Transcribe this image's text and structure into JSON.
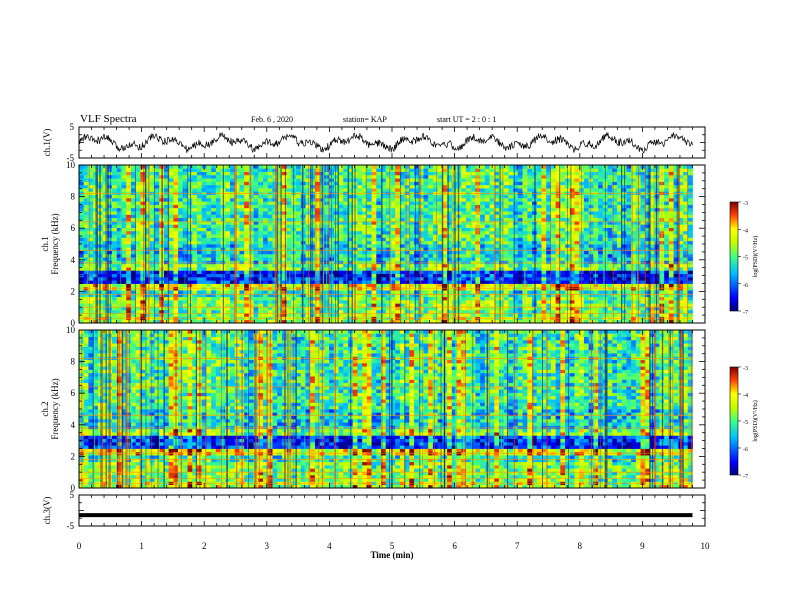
{
  "header": {
    "title": "VLF Spectra",
    "date": "Feb. 6 , 2020",
    "station": "station= KAP",
    "start": "start UT =  2 : 0 : 1"
  },
  "chart_data": [
    {
      "type": "line",
      "panel": "ch1-waveform",
      "ylabel": "ch.1(V)",
      "ylim": [
        -5,
        5
      ],
      "yticks": [
        -5,
        5
      ],
      "xlim": [
        0,
        10
      ],
      "description_values": "noisy waveform oscillating roughly between -3 and 3 V, spanning 0 to ~9.8 min"
    },
    {
      "type": "heatmap",
      "panel": "ch1-spectrogram",
      "ylabel": "ch.1\nFrequency (kHz)",
      "ylabel_lines": [
        "ch.1",
        "Frequency (kHz)"
      ],
      "ylim": [
        0,
        10
      ],
      "yticks": [
        0,
        2,
        4,
        6,
        8,
        10
      ],
      "xlim": [
        0,
        10
      ],
      "data_xmax": 9.8,
      "colorbar": {
        "label": "log(PSD)(V²/Hz)",
        "range": [
          -7,
          -3
        ],
        "ticks": [
          -7,
          -6,
          -5,
          -4,
          -3
        ]
      }
    },
    {
      "type": "heatmap",
      "panel": "ch2-spectrogram",
      "ylabel": "ch.2\nFrequency (kHz)",
      "ylabel_lines": [
        "ch.2",
        "Frequency (kHz)"
      ],
      "ylim": [
        0,
        10
      ],
      "yticks": [
        0,
        2,
        4,
        6,
        8,
        10
      ],
      "xlim": [
        0,
        10
      ],
      "data_xmax": 9.8,
      "colorbar": {
        "label": "log(PSD)(V²/Hz)",
        "range": [
          -7,
          -3
        ],
        "ticks": [
          -7,
          -6,
          -5,
          -4,
          -3
        ]
      }
    },
    {
      "type": "line",
      "panel": "ch3-waveform",
      "ylabel": "ch.3(V)",
      "ylim": [
        -5,
        5
      ],
      "yticks": [
        -5,
        0,
        5
      ],
      "ytick_labels": [
        "-5",
        "",
        "5"
      ],
      "xlim": [
        0,
        10
      ],
      "constant_value": -1.5,
      "data_xmax": 9.8,
      "xlabel": "Time (min)",
      "xticks": [
        0,
        1,
        2,
        3,
        4,
        5,
        6,
        7,
        8,
        9,
        10
      ]
    }
  ],
  "colors": {
    "cmap": [
      "#00008b",
      "#0000ff",
      "#0080ff",
      "#00ffff",
      "#00ff80",
      "#80ff00",
      "#ffff00",
      "#ff8000",
      "#ff0000",
      "#8b0000"
    ]
  }
}
